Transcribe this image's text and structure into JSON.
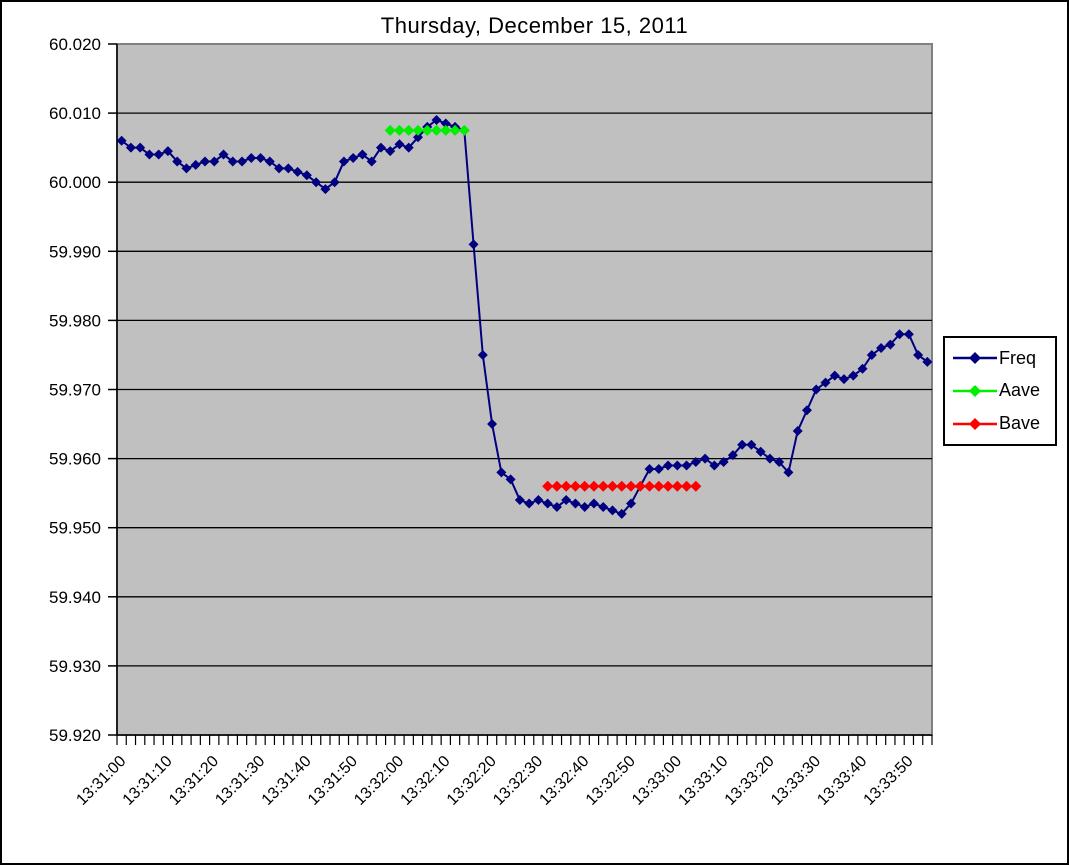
{
  "chart_data": {
    "type": "line",
    "title": "Thursday, December 15, 2011",
    "xlabel": "",
    "ylabel": "",
    "ylim": [
      59.92,
      60.02
    ],
    "ytick_step": 0.01,
    "y_tick_labels": [
      "60.020",
      "60.010",
      "60.000",
      "59.990",
      "59.980",
      "59.970",
      "59.960",
      "59.950",
      "59.940",
      "59.930",
      "59.920"
    ],
    "x_tick_labels": [
      "13:31:00",
      "13:31:10",
      "13:31:20",
      "13:31:30",
      "13:31:40",
      "13:31:50",
      "13:32:00",
      "13:32:10",
      "13:32:20",
      "13:32:30",
      "13:32:40",
      "13:32:50",
      "13:33:00",
      "13:33:10",
      "13:33:20",
      "13:33:30",
      "13:33:40",
      "13:33:50"
    ],
    "x_label_every": 5,
    "grid": "horizontal-only",
    "plot_bg": "#c0c0c0",
    "plot_border": "#808080",
    "axis_color": "#000000",
    "legend_position": "right",
    "x": [
      "13:31:00",
      "13:31:02",
      "13:31:04",
      "13:31:06",
      "13:31:08",
      "13:31:10",
      "13:31:12",
      "13:31:14",
      "13:31:16",
      "13:31:18",
      "13:31:20",
      "13:31:22",
      "13:31:24",
      "13:31:26",
      "13:31:28",
      "13:31:30",
      "13:31:32",
      "13:31:34",
      "13:31:36",
      "13:31:38",
      "13:31:40",
      "13:31:42",
      "13:31:44",
      "13:31:46",
      "13:31:48",
      "13:31:50",
      "13:31:52",
      "13:31:54",
      "13:31:56",
      "13:31:58",
      "13:32:00",
      "13:32:02",
      "13:32:04",
      "13:32:06",
      "13:32:08",
      "13:32:10",
      "13:32:12",
      "13:32:14",
      "13:32:16",
      "13:32:18",
      "13:32:20",
      "13:32:22",
      "13:32:24",
      "13:32:26",
      "13:32:28",
      "13:32:30",
      "13:32:32",
      "13:32:34",
      "13:32:36",
      "13:32:38",
      "13:32:40",
      "13:32:42",
      "13:32:44",
      "13:32:46",
      "13:32:48",
      "13:32:50",
      "13:32:52",
      "13:32:54",
      "13:32:56",
      "13:32:58",
      "13:33:00",
      "13:33:02",
      "13:33:04",
      "13:33:06",
      "13:33:08",
      "13:33:10",
      "13:33:12",
      "13:33:14",
      "13:33:16",
      "13:33:18",
      "13:33:20",
      "13:33:22",
      "13:33:24",
      "13:33:26",
      "13:33:28",
      "13:33:30",
      "13:33:32",
      "13:33:34",
      "13:33:36",
      "13:33:38",
      "13:33:40",
      "13:33:42",
      "13:33:44",
      "13:33:46",
      "13:33:48",
      "13:33:50",
      "13:33:52",
      "13:33:54"
    ],
    "series": [
      {
        "name": "Freq",
        "color": "#000080",
        "marker": "diamond",
        "start_index": 0,
        "values": [
          60.006,
          60.005,
          60.005,
          60.004,
          60.004,
          60.0045,
          60.003,
          60.002,
          60.0025,
          60.003,
          60.003,
          60.004,
          60.003,
          60.003,
          60.0035,
          60.0035,
          60.003,
          60.002,
          60.002,
          60.0015,
          60.001,
          60.0,
          59.999,
          60.0,
          60.003,
          60.0035,
          60.004,
          60.003,
          60.005,
          60.0045,
          60.0055,
          60.005,
          60.0065,
          60.008,
          60.009,
          60.0085,
          60.008,
          60.0075,
          59.991,
          59.975,
          59.965,
          59.958,
          59.957,
          59.954,
          59.9535,
          59.954,
          59.9535,
          59.953,
          59.954,
          59.9535,
          59.953,
          59.9535,
          59.953,
          59.9525,
          59.952,
          59.9535,
          59.956,
          59.9585,
          59.9585,
          59.959,
          59.959,
          59.959,
          59.9595,
          59.96,
          59.959,
          59.9595,
          59.9605,
          59.962,
          59.962,
          59.961,
          59.96,
          59.9595,
          59.958,
          59.964,
          59.967,
          59.97,
          59.971,
          59.972,
          59.9715,
          59.972,
          59.973,
          59.975,
          59.976,
          59.9765,
          59.978,
          59.978,
          59.975,
          59.974
        ]
      },
      {
        "name": "Aave",
        "color": "#00ee00",
        "marker": "diamond",
        "start_index": 29,
        "values": [
          60.0075,
          60.0075,
          60.0075,
          60.0075,
          60.0075,
          60.0075,
          60.0075,
          60.0075,
          60.0075
        ]
      },
      {
        "name": "Bave",
        "color": "#ff0000",
        "marker": "diamond",
        "start_index": 46,
        "values": [
          59.956,
          59.956,
          59.956,
          59.956,
          59.956,
          59.956,
          59.956,
          59.956,
          59.956,
          59.956,
          59.956,
          59.956,
          59.956,
          59.956,
          59.956,
          59.956,
          59.956
        ]
      }
    ]
  },
  "legend": {
    "items": [
      {
        "label": "Freq",
        "color": "#000080"
      },
      {
        "label": "Aave",
        "color": "#00ee00"
      },
      {
        "label": "Bave",
        "color": "#ff0000"
      }
    ]
  }
}
